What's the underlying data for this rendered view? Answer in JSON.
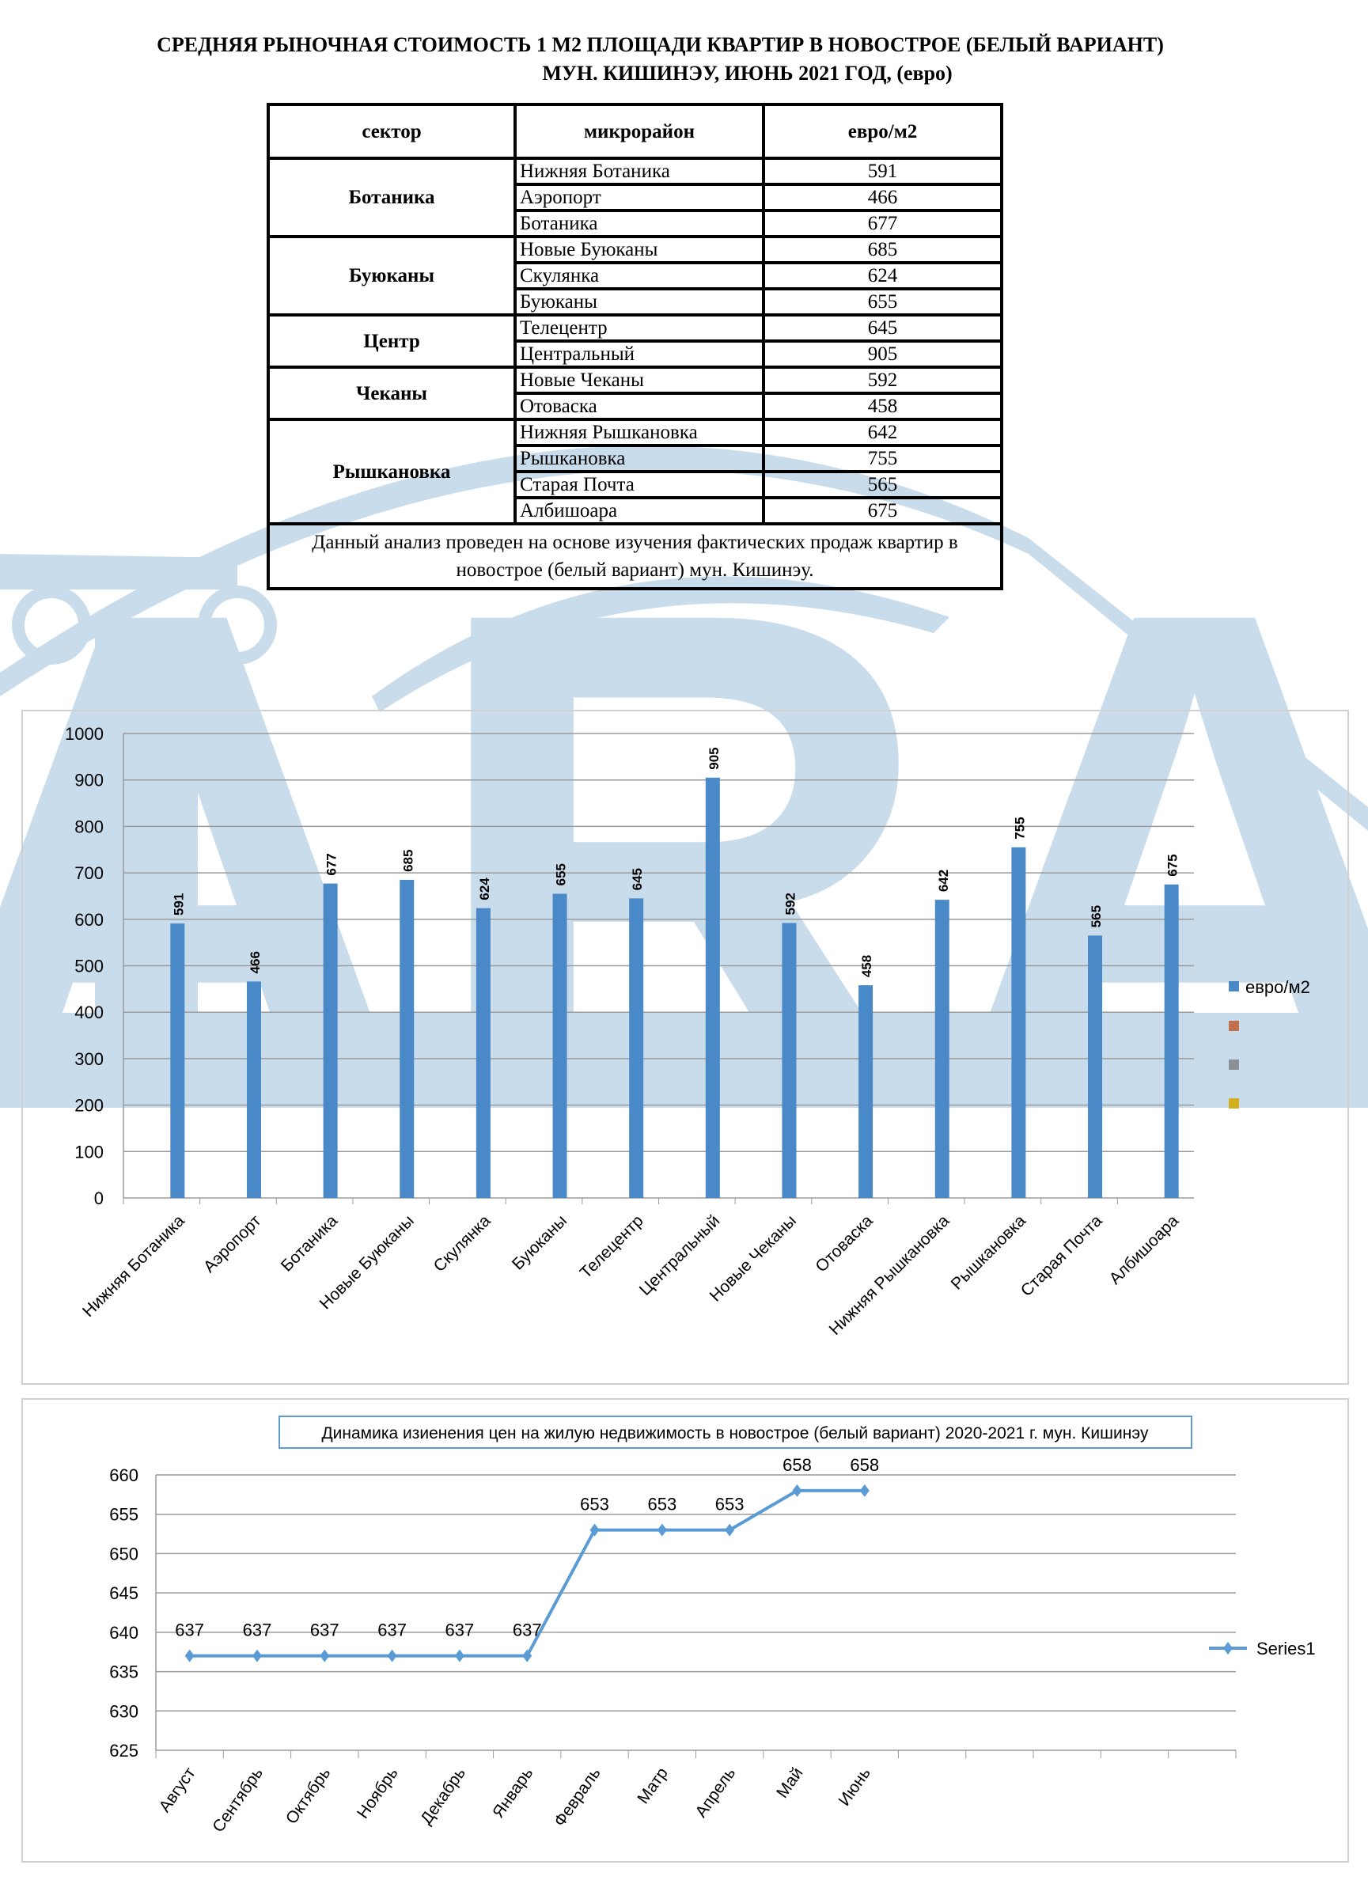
{
  "title": {
    "line1": "СРЕДНЯЯ  РЫНОЧНАЯ  СТОИМОСТЬ  1 М2  ПЛОЩАДИ  КВАРТИР В НОВОСТРОЕ  (БЕЛЫЙ ВАРИАНТ)",
    "line2": "МУН. КИШИНЭУ, ИЮНЬ 2021 ГОД, (евро)"
  },
  "table": {
    "headers": [
      "сектор",
      "микрорайон",
      "евро/м2"
    ],
    "sectors": [
      {
        "name": "Ботаника",
        "rows": [
          [
            "Нижняя Ботаника",
            "591"
          ],
          [
            "Аэропорт",
            "466"
          ],
          [
            "Ботаника",
            "677"
          ]
        ]
      },
      {
        "name": "Буюканы",
        "rows": [
          [
            "Новые Буюканы",
            "685"
          ],
          [
            "Скулянка",
            "624"
          ],
          [
            "Буюканы",
            "655"
          ]
        ]
      },
      {
        "name": "Центр",
        "rows": [
          [
            "Телецентр",
            "645"
          ],
          [
            "Центральный",
            "905"
          ]
        ]
      },
      {
        "name": "Чеканы",
        "rows": [
          [
            "Новые Чеканы",
            "592"
          ],
          [
            "Отоваска",
            "458"
          ]
        ]
      },
      {
        "name": "Рышкановка",
        "rows": [
          [
            "Нижняя Рышкановка",
            "642"
          ],
          [
            "Рышкановка",
            "755"
          ],
          [
            "Старая Почта",
            "565"
          ],
          [
            "Албишоара",
            "675"
          ]
        ]
      }
    ],
    "note": "Данный анализ проведен на основе изучения фактических продаж квартир в новострое (белый вариант)  мун. Кишинэу."
  },
  "watermark": {
    "logo_text": "ARA",
    "color": "#c9dcec"
  },
  "chart_data": [
    {
      "type": "bar",
      "title": "",
      "categories": [
        "Нижняя Ботаника",
        "Аэропорт",
        "Ботаника",
        "Новые Буюканы",
        "Скулянка",
        "Буюканы",
        "Телецентр",
        "Центральный",
        "Новые Чеканы",
        "Отоваска",
        "Нижняя Рышкановка",
        "Рышкановка",
        "Старая Почта",
        "Албишоара"
      ],
      "series": [
        {
          "name": "евро/м2",
          "color": "#4a89c8",
          "values": [
            591,
            466,
            677,
            685,
            624,
            655,
            645,
            905,
            592,
            458,
            642,
            755,
            565,
            675
          ]
        }
      ],
      "extra_legend_colors": [
        "#c0704a",
        "#8c9096",
        "#d4b020"
      ],
      "ylim": [
        0,
        1000
      ],
      "yticks": [
        0,
        100,
        200,
        300,
        400,
        500,
        600,
        700,
        800,
        900,
        1000
      ],
      "grid": true,
      "legend": "right"
    },
    {
      "type": "line",
      "title": "Динамика изиенения цен на жилую недвижимость в новострое (белый вариант)  2020-2021 г. мун. Кишинэу",
      "categories": [
        "Август",
        "Сентябрь",
        "Октябрь",
        "Ноябрь",
        "Декабрь",
        "Январь",
        "Февраль",
        "Матр",
        "Апрель",
        "Май",
        "Июнь"
      ],
      "empty_slots": 5,
      "series": [
        {
          "name": "Series1",
          "color": "#5b9bd5",
          "values": [
            637,
            637,
            637,
            637,
            637,
            637,
            653,
            653,
            653,
            658,
            658
          ]
        }
      ],
      "ylim": [
        625,
        660
      ],
      "yticks": [
        625,
        630,
        635,
        640,
        645,
        650,
        655,
        660
      ],
      "grid": true,
      "legend": "right"
    }
  ]
}
